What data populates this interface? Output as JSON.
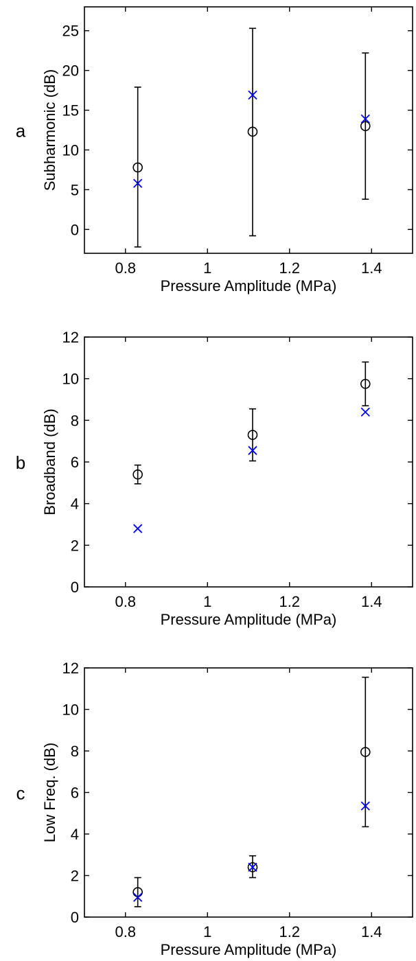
{
  "chart_data": [
    {
      "type": "scatter",
      "panel_label": "a",
      "xlabel": "Pressure Amplitude (MPa)",
      "ylabel": "Subharmonic (dB)",
      "xlim": [
        0.7,
        1.5
      ],
      "ylim": [
        -3,
        28
      ],
      "xticks": [
        0.8,
        1,
        1.2,
        1.4
      ],
      "xtick_labels": [
        "0.8",
        "1",
        "1.2",
        "1.4"
      ],
      "yticks": [
        0,
        5,
        10,
        15,
        20,
        25
      ],
      "ytick_labels": [
        "0",
        "5",
        "10",
        "15",
        "20",
        "25"
      ],
      "grid": false,
      "series": [
        {
          "marker": "circle-errorbar",
          "color": "#000000",
          "x": [
            0.83,
            1.11,
            1.385
          ],
          "y": [
            7.8,
            12.3,
            13.0
          ],
          "err_low": [
            -2.2,
            -0.8,
            3.8
          ],
          "err_high": [
            17.9,
            25.3,
            22.2
          ]
        },
        {
          "marker": "x",
          "color": "#0000ff",
          "x": [
            0.83,
            1.11,
            1.385
          ],
          "y": [
            5.8,
            16.9,
            13.9
          ]
        }
      ]
    },
    {
      "type": "scatter",
      "panel_label": "b",
      "xlabel": "Pressure Amplitude (MPa)",
      "ylabel": "Broadband (dB)",
      "xlim": [
        0.7,
        1.5
      ],
      "ylim": [
        0,
        12
      ],
      "xticks": [
        0.8,
        1,
        1.2,
        1.4
      ],
      "xtick_labels": [
        "0.8",
        "1",
        "1.2",
        "1.4"
      ],
      "yticks": [
        0,
        2,
        4,
        6,
        8,
        10,
        12
      ],
      "ytick_labels": [
        "0",
        "2",
        "4",
        "6",
        "8",
        "10",
        "12"
      ],
      "grid": false,
      "series": [
        {
          "marker": "circle-errorbar",
          "color": "#000000",
          "x": [
            0.83,
            1.11,
            1.385
          ],
          "y": [
            5.4,
            7.3,
            9.75
          ],
          "err_low": [
            4.95,
            6.05,
            8.7
          ],
          "err_high": [
            5.85,
            8.55,
            10.8
          ]
        },
        {
          "marker": "x",
          "color": "#0000ff",
          "x": [
            0.83,
            1.11,
            1.385
          ],
          "y": [
            2.8,
            6.55,
            8.4
          ]
        }
      ]
    },
    {
      "type": "scatter",
      "panel_label": "c",
      "xlabel": "Pressure Amplitude (MPa)",
      "ylabel": "Low Freq. (dB)",
      "xlim": [
        0.7,
        1.5
      ],
      "ylim": [
        0,
        12
      ],
      "xticks": [
        0.8,
        1,
        1.2,
        1.4
      ],
      "xtick_labels": [
        "0.8",
        "1",
        "1.2",
        "1.4"
      ],
      "yticks": [
        0,
        2,
        4,
        6,
        8,
        10,
        12
      ],
      "ytick_labels": [
        "0",
        "2",
        "4",
        "6",
        "8",
        "10",
        "12"
      ],
      "grid": false,
      "series": [
        {
          "marker": "circle-errorbar",
          "color": "#000000",
          "x": [
            0.83,
            1.11,
            1.385
          ],
          "y": [
            1.2,
            2.4,
            7.95
          ],
          "err_low": [
            0.5,
            1.9,
            4.35
          ],
          "err_high": [
            1.9,
            2.95,
            11.55
          ]
        },
        {
          "marker": "x",
          "color": "#0000ff",
          "x": [
            0.83,
            1.11,
            1.385
          ],
          "y": [
            0.95,
            2.4,
            5.35
          ]
        }
      ]
    }
  ]
}
